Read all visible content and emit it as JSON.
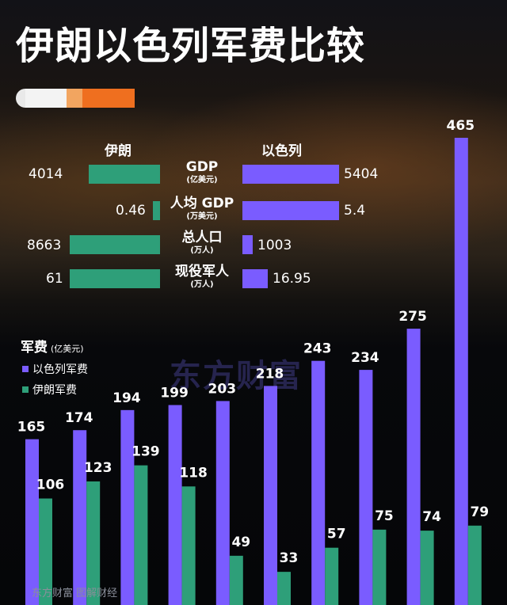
{
  "title": "伊朗以色列军费比较",
  "colors": {
    "iran": "#2e9f79",
    "israel": "#7a5cff",
    "accent": "#ef6f1f"
  },
  "compare": {
    "iran_header": "伊朗",
    "israel_header": "以色列",
    "rows": [
      {
        "label": "GDP",
        "unit": "(亿美元)",
        "iran": "4014",
        "israel": "5404",
        "iran_v": 4014,
        "israel_v": 5404
      },
      {
        "label": "人均 GDP",
        "unit": "(万美元)",
        "iran": "0.46",
        "israel": "5.4",
        "iran_v": 0.46,
        "israel_v": 5.4
      },
      {
        "label": "总人口",
        "unit": "(万人)",
        "iran": "8663",
        "israel": "1003",
        "iran_v": 8663,
        "israel_v": 1003
      },
      {
        "label": "现役军人",
        "unit": "(万人)",
        "iran": "61",
        "israel": "16.95",
        "iran_v": 61,
        "israel_v": 16.95
      }
    ]
  },
  "legend": {
    "title": "军费",
    "unit": "(亿美元)",
    "israel": "以色列军费",
    "iran": "伊朗军费"
  },
  "watermark": "东方财富",
  "footer": "东方财富 图解财经",
  "chart_data": {
    "type": "bar",
    "ylabel": "军费 (亿美元)",
    "series": [
      {
        "name": "以色列军费",
        "values": [
          165,
          174,
          194,
          199,
          203,
          218,
          243,
          234,
          275,
          465
        ]
      },
      {
        "name": "伊朗军费",
        "values": [
          106,
          123,
          139,
          118,
          49,
          33,
          57,
          75,
          74,
          79
        ]
      }
    ]
  }
}
